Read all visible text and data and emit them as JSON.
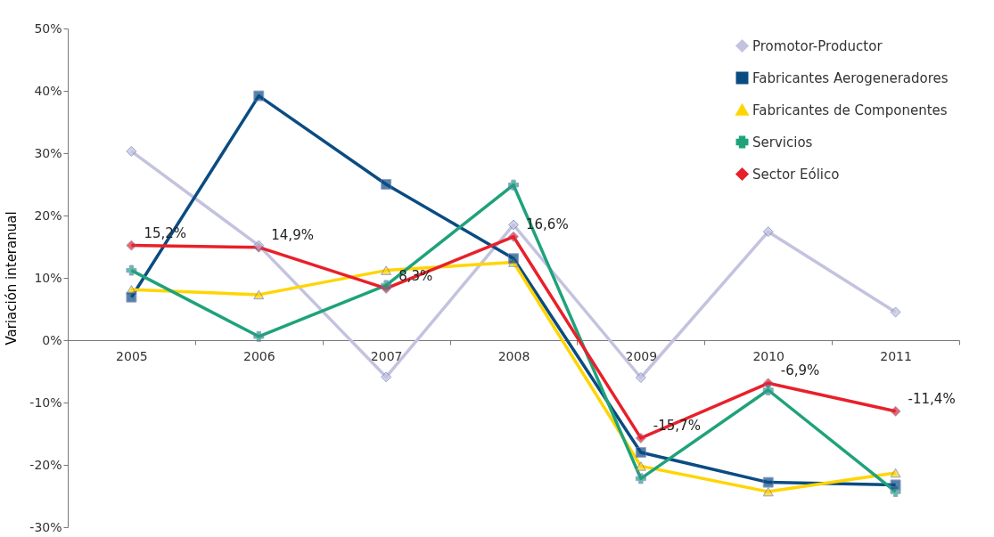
{
  "chart_data": {
    "type": "line",
    "ylabel": "Variación interanual",
    "categories": [
      "2005",
      "2006",
      "2007",
      "2008",
      "2009",
      "2010",
      "2011"
    ],
    "ylim": [
      -30,
      50
    ],
    "yticks": [
      {
        "value": -30,
        "label": "-30%"
      },
      {
        "value": -20,
        "label": "-20%"
      },
      {
        "value": -10,
        "label": "-10%"
      },
      {
        "value": 0,
        "label": "0%"
      },
      {
        "value": 10,
        "label": "10%"
      },
      {
        "value": 20,
        "label": "20%"
      },
      {
        "value": 30,
        "label": "30%"
      },
      {
        "value": 40,
        "label": "40%"
      },
      {
        "value": 50,
        "label": "50%"
      }
    ],
    "grid": false,
    "legend": "top right",
    "series": [
      {
        "name": "Promotor-Productor",
        "color": "#c3c3df",
        "marker": "diamond",
        "values": [
          30.3,
          15.2,
          -5.9,
          18.5,
          -6.0,
          17.4,
          4.5
        ]
      },
      {
        "name": "Fabricantes Aerogeneradores",
        "color": "#0a4c82",
        "marker": "square",
        "values": [
          6.9,
          39.2,
          25.0,
          13.1,
          -18.0,
          -22.8,
          -23.2
        ]
      },
      {
        "name": "Fabricantes de Componentes",
        "color": "#ffd500",
        "marker": "triangle",
        "values": [
          8.1,
          7.3,
          11.2,
          12.5,
          -20.2,
          -24.3,
          -21.3
        ]
      },
      {
        "name": "Servicios",
        "color": "#1fa27a",
        "marker": "cross",
        "values": [
          11.2,
          0.6,
          8.8,
          24.9,
          -22.2,
          -8.0,
          -24.3
        ]
      },
      {
        "name": "Sector Eólico",
        "color": "#e8202a",
        "marker": "diamond",
        "values": [
          15.2,
          14.9,
          8.3,
          16.6,
          -15.7,
          -6.9,
          -11.4
        ],
        "value_labels": [
          "15,2%",
          "14,9%",
          "8,3%",
          "16,6%",
          "-15,7%",
          "-6,9%",
          "-11,4%"
        ]
      }
    ]
  }
}
